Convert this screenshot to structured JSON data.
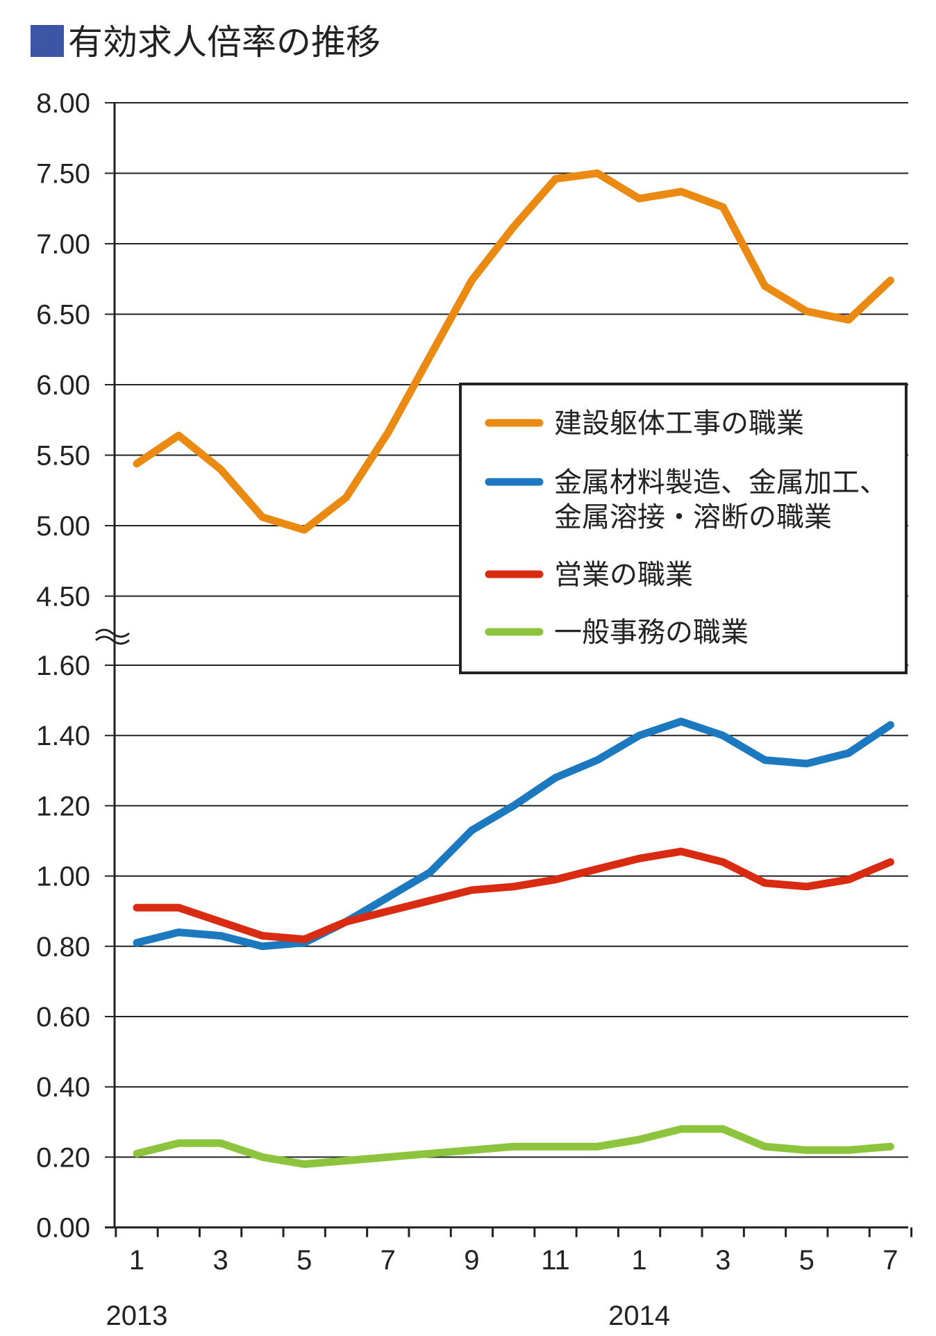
{
  "title": "有効求人倍率の推移",
  "title_marker_color": "#3c55a5",
  "chart_data": {
    "type": "line",
    "title": "有効求人倍率の推移",
    "xlabel": "",
    "ylabel": "",
    "axis_break": "between 1.60 and 4.50",
    "grid": true,
    "legend_position": "right",
    "upper_yticks": [
      "8.00",
      "7.50",
      "7.00",
      "6.50",
      "6.00",
      "5.50",
      "5.00",
      "4.50"
    ],
    "lower_yticks": [
      "1.60",
      "1.40",
      "1.20",
      "1.00",
      "0.80",
      "0.60",
      "0.40",
      "0.20",
      "0.00"
    ],
    "x_tick_labels": [
      "1",
      "3",
      "5",
      "7",
      "9",
      "11",
      "1",
      "3",
      "5",
      "7"
    ],
    "x_year_labels": [
      "2013",
      "2014"
    ],
    "x": [
      "2013-01",
      "2013-02",
      "2013-03",
      "2013-04",
      "2013-05",
      "2013-06",
      "2013-07",
      "2013-08",
      "2013-09",
      "2013-10",
      "2013-11",
      "2013-12",
      "2014-01",
      "2014-02",
      "2014-03",
      "2014-04",
      "2014-05",
      "2014-06",
      "2014-07"
    ],
    "series": [
      {
        "name": "建設躯体工事の職業",
        "color": "#ea8a12",
        "values": [
          5.44,
          5.64,
          5.4,
          5.06,
          4.97,
          5.2,
          5.66,
          6.2,
          6.74,
          7.12,
          7.46,
          7.5,
          7.32,
          7.37,
          7.26,
          6.7,
          6.52,
          6.46,
          6.74
        ]
      },
      {
        "name": "金属材料製造、金属加工、\n金属溶接・溶断の職業",
        "color": "#1c79c0",
        "values": [
          0.81,
          0.84,
          0.83,
          0.8,
          0.81,
          0.87,
          0.94,
          1.01,
          1.13,
          1.2,
          1.28,
          1.33,
          1.4,
          1.44,
          1.4,
          1.33,
          1.32,
          1.35,
          1.43
        ]
      },
      {
        "name": "営業の職業",
        "color": "#d92b12",
        "values": [
          0.91,
          0.91,
          0.87,
          0.83,
          0.82,
          0.87,
          0.9,
          0.93,
          0.96,
          0.97,
          0.99,
          1.02,
          1.05,
          1.07,
          1.04,
          0.98,
          0.97,
          0.99,
          1.04
        ]
      },
      {
        "name": "一般事務の職業",
        "color": "#8dc43e",
        "values": [
          0.21,
          0.24,
          0.24,
          0.2,
          0.18,
          0.19,
          0.2,
          0.21,
          0.22,
          0.23,
          0.23,
          0.23,
          0.25,
          0.28,
          0.28,
          0.23,
          0.22,
          0.22,
          0.23
        ]
      }
    ]
  }
}
